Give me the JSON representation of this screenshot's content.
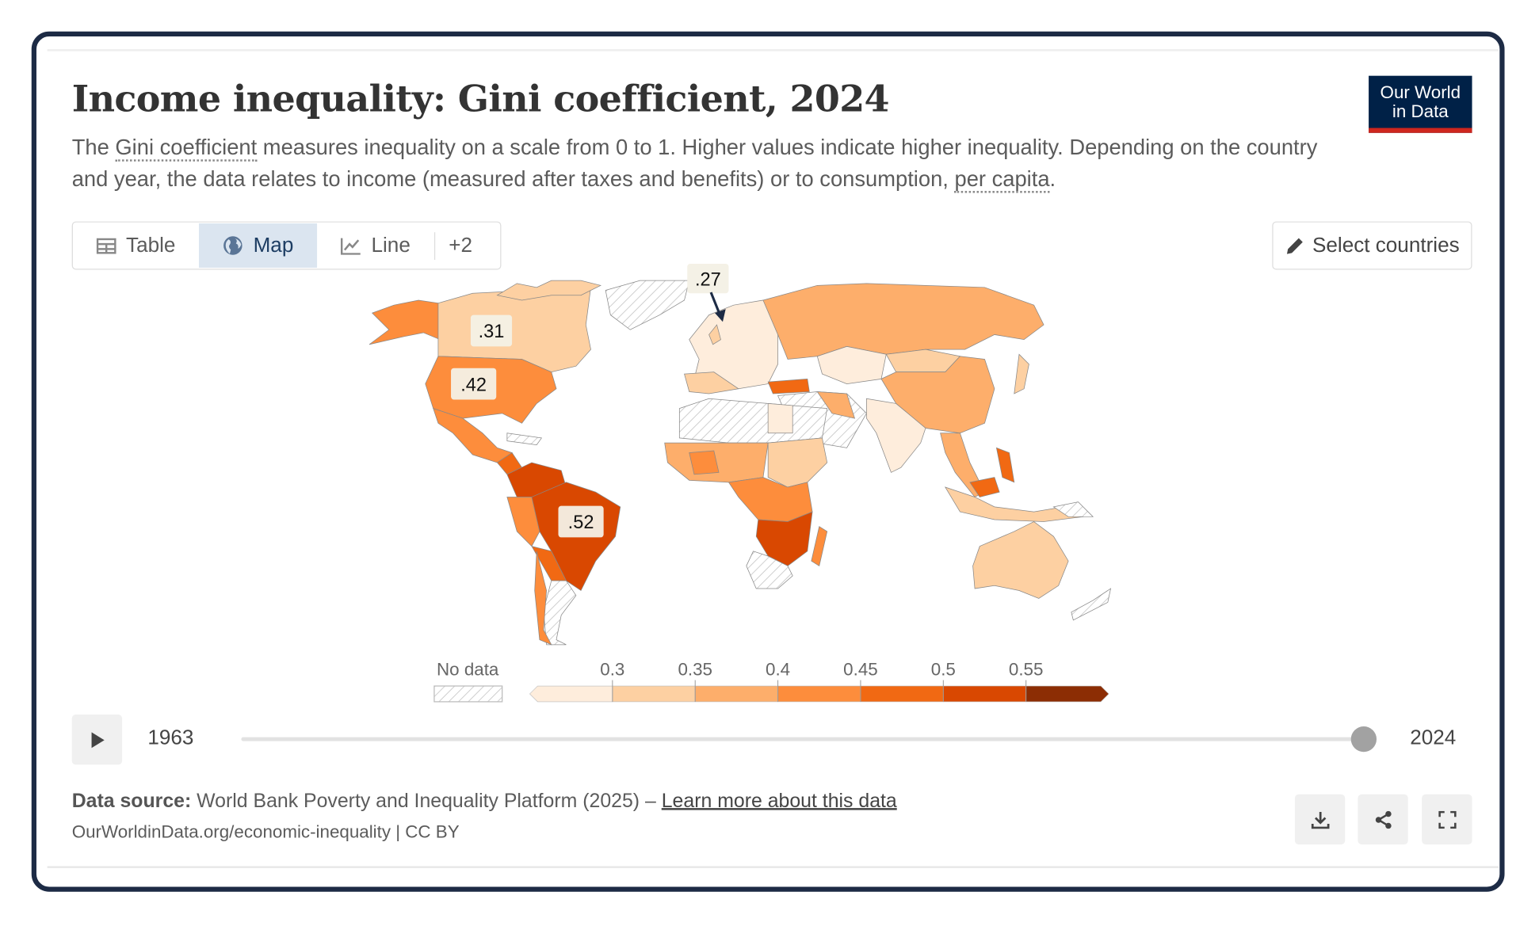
{
  "header": {
    "title": "Income inequality: Gini coefficient, 2024",
    "subtitle_parts": {
      "pre": "The ",
      "link1": "Gini coefficient",
      "mid": " measures inequality on a scale from 0 to 1. Higher values indicate higher inequality. Depending on the country and year, the data relates to income (measured after taxes and benefits) or to consumption, ",
      "link2": "per capita",
      "post": "."
    },
    "logo": {
      "line1": "Our World",
      "line2": "in Data"
    }
  },
  "tabs": [
    {
      "label": "Table",
      "icon": "table-icon",
      "active": false
    },
    {
      "label": "Map",
      "icon": "globe-icon",
      "active": true
    },
    {
      "label": "Line",
      "icon": "line-chart-icon",
      "active": false
    }
  ],
  "more_tabs": "+2",
  "select_countries": "Select countries",
  "map": {
    "annotations": [
      {
        "region": "Canada",
        "label": ".31"
      },
      {
        "region": "United States",
        "label": ".42"
      },
      {
        "region": "Brazil",
        "label": ".52"
      },
      {
        "region": "Europe (pointer)",
        "label": ".27"
      }
    ],
    "legend": {
      "no_data": "No data",
      "ticks": [
        "0.3",
        "0.35",
        "0.4",
        "0.45",
        "0.5",
        "0.55"
      ],
      "colors": [
        "#feeddc",
        "#fdd0a2",
        "#fdae6b",
        "#fd8d3c",
        "#f16913",
        "#d94801",
        "#8c2d04"
      ]
    }
  },
  "timeline": {
    "start": "1963",
    "end": "2024",
    "position": 1.0
  },
  "footer": {
    "source_label": "Data source:",
    "source_text": " World Bank Poverty and Inequality Platform (2025) – ",
    "learn_more": "Learn more about this data",
    "url": "OurWorldinData.org/economic-inequality | CC BY"
  },
  "colors": {
    "frame": "#1d2b45",
    "logo_bg": "#002147",
    "logo_accent": "#ce261e",
    "active_tab": "#dbe5f0"
  }
}
